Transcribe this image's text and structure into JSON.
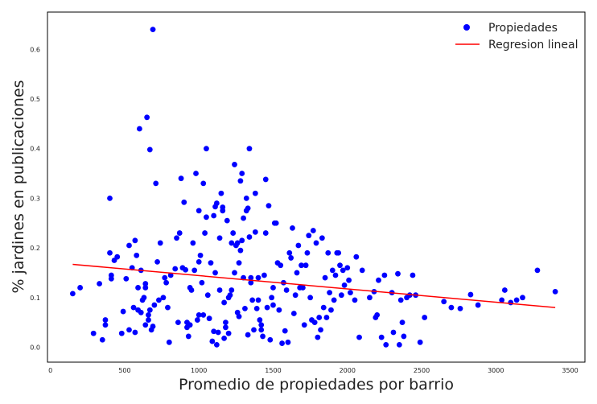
{
  "chart_data": {
    "type": "scatter",
    "title": "",
    "xlabel": "Promedio de propiedades por barrio",
    "ylabel": "% jardines en publicaciones",
    "xlim": [
      -20,
      3600
    ],
    "ylim": [
      -0.03,
      0.675
    ],
    "x_ticks": [
      0,
      500,
      1000,
      1500,
      2000,
      2500,
      3000,
      3500
    ],
    "x_tick_labels": [
      "0",
      "500",
      "1000",
      "1500",
      "2000",
      "2500",
      "3000",
      "3500"
    ],
    "y_ticks": [
      0.0,
      0.1,
      0.2,
      0.3,
      0.4,
      0.5,
      0.6
    ],
    "y_tick_labels": [
      "0.0",
      "0.1",
      "0.2",
      "0.3",
      "0.4",
      "0.5",
      "0.6"
    ],
    "grid": false,
    "legend_position": "top-right",
    "series": [
      {
        "name": "Propiedades",
        "kind": "scatter",
        "color": "#0000ff",
        "points": [
          [
            150,
            0.108
          ],
          [
            200,
            0.12
          ],
          [
            290,
            0.028
          ],
          [
            330,
            0.128
          ],
          [
            350,
            0.015
          ],
          [
            370,
            0.055
          ],
          [
            370,
            0.045
          ],
          [
            400,
            0.3
          ],
          [
            400,
            0.19
          ],
          [
            410,
            0.145
          ],
          [
            410,
            0.138
          ],
          [
            430,
            0.175
          ],
          [
            450,
            0.182
          ],
          [
            480,
            0.028
          ],
          [
            490,
            0.072
          ],
          [
            510,
            0.138
          ],
          [
            530,
            0.035
          ],
          [
            530,
            0.205
          ],
          [
            550,
            0.16
          ],
          [
            560,
            0.08
          ],
          [
            570,
            0.215
          ],
          [
            570,
            0.03
          ],
          [
            580,
            0.185
          ],
          [
            590,
            0.12
          ],
          [
            590,
            0.075
          ],
          [
            600,
            0.44
          ],
          [
            610,
            0.07
          ],
          [
            610,
            0.155
          ],
          [
            620,
            0.095
          ],
          [
            630,
            0.1
          ],
          [
            640,
            0.12
          ],
          [
            640,
            0.128
          ],
          [
            640,
            0.045
          ],
          [
            650,
            0.463
          ],
          [
            660,
            0.065
          ],
          [
            660,
            0.055
          ],
          [
            670,
            0.398
          ],
          [
            670,
            0.075
          ],
          [
            680,
            0.035
          ],
          [
            690,
            0.042
          ],
          [
            690,
            0.64
          ],
          [
            700,
            0.085
          ],
          [
            710,
            0.33
          ],
          [
            720,
            0.172
          ],
          [
            730,
            0.095
          ],
          [
            740,
            0.21
          ],
          [
            760,
            0.1
          ],
          [
            770,
            0.14
          ],
          [
            780,
            0.13
          ],
          [
            790,
            0.08
          ],
          [
            800,
            0.01
          ],
          [
            810,
            0.145
          ],
          [
            840,
            0.158
          ],
          [
            850,
            0.22
          ],
          [
            860,
            0.05
          ],
          [
            870,
            0.23
          ],
          [
            880,
            0.34
          ],
          [
            890,
            0.16
          ],
          [
            900,
            0.292
          ],
          [
            910,
            0.156
          ],
          [
            920,
            0.05
          ],
          [
            920,
            0.04
          ],
          [
            930,
            0.022
          ],
          [
            940,
            0.045
          ],
          [
            940,
            0.12
          ],
          [
            950,
            0.115
          ],
          [
            960,
            0.21
          ],
          [
            970,
            0.155
          ],
          [
            980,
            0.35
          ],
          [
            990,
            0.055
          ],
          [
            1000,
            0.172
          ],
          [
            1000,
            0.275
          ],
          [
            1000,
            0.065
          ],
          [
            1010,
            0.185
          ],
          [
            1020,
            0.13
          ],
          [
            1030,
            0.33
          ],
          [
            1030,
            0.065
          ],
          [
            1040,
            0.23
          ],
          [
            1050,
            0.262
          ],
          [
            1050,
            0.4
          ],
          [
            1060,
            0.105
          ],
          [
            1070,
            0.058
          ],
          [
            1080,
            0.17
          ],
          [
            1090,
            0.012
          ],
          [
            1100,
            0.265
          ],
          [
            1100,
            0.032
          ],
          [
            1110,
            0.283
          ],
          [
            1110,
            0.15
          ],
          [
            1120,
            0.29
          ],
          [
            1120,
            0.005
          ],
          [
            1130,
            0.03
          ],
          [
            1140,
            0.22
          ],
          [
            1140,
            0.115
          ],
          [
            1150,
            0.31
          ],
          [
            1160,
            0.275
          ],
          [
            1160,
            0.282
          ],
          [
            1170,
            0.09
          ],
          [
            1170,
            0.018
          ],
          [
            1180,
            0.04
          ],
          [
            1180,
            0.05
          ],
          [
            1190,
            0.255
          ],
          [
            1200,
            0.1
          ],
          [
            1200,
            0.028
          ],
          [
            1210,
            0.105
          ],
          [
            1220,
            0.115
          ],
          [
            1220,
            0.21
          ],
          [
            1230,
            0.23
          ],
          [
            1240,
            0.368
          ],
          [
            1240,
            0.15
          ],
          [
            1250,
            0.205
          ],
          [
            1260,
            0.21
          ],
          [
            1260,
            0.07
          ],
          [
            1270,
            0.062
          ],
          [
            1270,
            0.17
          ],
          [
            1280,
            0.335
          ],
          [
            1280,
            0.195
          ],
          [
            1290,
            0.215
          ],
          [
            1290,
            0.35
          ],
          [
            1300,
            0.26
          ],
          [
            1300,
            0.14
          ],
          [
            1310,
            0.078
          ],
          [
            1320,
            0.3
          ],
          [
            1320,
            0.275
          ],
          [
            1330,
            0.28
          ],
          [
            1330,
            0.025
          ],
          [
            1340,
            0.222
          ],
          [
            1340,
            0.4
          ],
          [
            1350,
            0.14
          ],
          [
            1350,
            0.13
          ],
          [
            1360,
            0.095
          ],
          [
            1370,
            0.035
          ],
          [
            1380,
            0.31
          ],
          [
            1380,
            0.232
          ],
          [
            1390,
            0.078
          ],
          [
            1400,
            0.14
          ],
          [
            1400,
            0.095
          ],
          [
            1410,
            0.055
          ],
          [
            1420,
            0.045
          ],
          [
            1420,
            0.035
          ],
          [
            1430,
            0.022
          ],
          [
            1440,
            0.145
          ],
          [
            1450,
            0.338
          ],
          [
            1450,
            0.23
          ],
          [
            1460,
            0.08
          ],
          [
            1470,
            0.285
          ],
          [
            1480,
            0.015
          ],
          [
            1490,
            0.1
          ],
          [
            1500,
            0.12
          ],
          [
            1500,
            0.085
          ],
          [
            1510,
            0.25
          ],
          [
            1520,
            0.25
          ],
          [
            1530,
            0.17
          ],
          [
            1540,
            0.075
          ],
          [
            1550,
            0.165
          ],
          [
            1560,
            0.008
          ],
          [
            1570,
            0.13
          ],
          [
            1580,
            0.033
          ],
          [
            1590,
            0.115
          ],
          [
            1600,
            0.01
          ],
          [
            1610,
            0.19
          ],
          [
            1620,
            0.18
          ],
          [
            1630,
            0.24
          ],
          [
            1640,
            0.068
          ],
          [
            1650,
            0.105
          ],
          [
            1660,
            0.15
          ],
          [
            1670,
            0.205
          ],
          [
            1680,
            0.12
          ],
          [
            1690,
            0.165
          ],
          [
            1700,
            0.12
          ],
          [
            1710,
            0.045
          ],
          [
            1720,
            0.165
          ],
          [
            1730,
            0.19
          ],
          [
            1740,
            0.225
          ],
          [
            1750,
            0.1
          ],
          [
            1760,
            0.055
          ],
          [
            1770,
            0.235
          ],
          [
            1780,
            0.05
          ],
          [
            1790,
            0.21
          ],
          [
            1800,
            0.02
          ],
          [
            1810,
            0.06
          ],
          [
            1820,
            0.035
          ],
          [
            1830,
            0.22
          ],
          [
            1840,
            0.08
          ],
          [
            1850,
            0.14
          ],
          [
            1860,
            0.06
          ],
          [
            1870,
            0.19
          ],
          [
            1880,
            0.11
          ],
          [
            1890,
            0.075
          ],
          [
            1900,
            0.155
          ],
          [
            1910,
            0.095
          ],
          [
            1920,
            0.145
          ],
          [
            1930,
            0.19
          ],
          [
            1940,
            0.19
          ],
          [
            1950,
            0.165
          ],
          [
            1960,
            0.105
          ],
          [
            1970,
            0.155
          ],
          [
            1980,
            0.125
          ],
          [
            2000,
            0.16
          ],
          [
            2010,
            0.135
          ],
          [
            2020,
            0.11
          ],
          [
            2050,
            0.095
          ],
          [
            2060,
            0.182
          ],
          [
            2080,
            0.02
          ],
          [
            2100,
            0.155
          ],
          [
            2150,
            0.1
          ],
          [
            2180,
            0.112
          ],
          [
            2190,
            0.06
          ],
          [
            2200,
            0.065
          ],
          [
            2210,
            0.135
          ],
          [
            2230,
            0.02
          ],
          [
            2250,
            0.145
          ],
          [
            2260,
            0.005
          ],
          [
            2300,
            0.11
          ],
          [
            2310,
            0.03
          ],
          [
            2340,
            0.148
          ],
          [
            2350,
            0.005
          ],
          [
            2360,
            0.095
          ],
          [
            2370,
            0.05
          ],
          [
            2380,
            0.022
          ],
          [
            2400,
            0.1
          ],
          [
            2420,
            0.105
          ],
          [
            2440,
            0.145
          ],
          [
            2460,
            0.105
          ],
          [
            2490,
            0.01
          ],
          [
            2520,
            0.06
          ],
          [
            2650,
            0.092
          ],
          [
            2700,
            0.08
          ],
          [
            2760,
            0.078
          ],
          [
            2830,
            0.106
          ],
          [
            2880,
            0.085
          ],
          [
            3040,
            0.095
          ],
          [
            3060,
            0.115
          ],
          [
            3100,
            0.09
          ],
          [
            3140,
            0.095
          ],
          [
            3180,
            0.1
          ],
          [
            3280,
            0.155
          ],
          [
            3400,
            0.112
          ]
        ]
      },
      {
        "name": "Regresion lineal",
        "kind": "line",
        "color": "#ff0000",
        "x": [
          150,
          3400
        ],
        "y": [
          0.167,
          0.08
        ]
      }
    ]
  }
}
